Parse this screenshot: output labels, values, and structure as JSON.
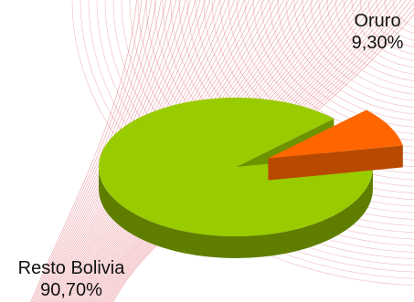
{
  "chart_data": {
    "type": "pie",
    "title": "",
    "slices": [
      {
        "label": "Oruro",
        "value_label": "9,30%",
        "value": 9.3,
        "color": "#ff6600",
        "exploded": true
      },
      {
        "label": "Resto Bolivia",
        "value_label": "90,70%",
        "value": 90.7,
        "color": "#99cc00",
        "exploded": false
      }
    ],
    "three_d": true,
    "legend": "none",
    "background_pattern_color": "#e6808a"
  }
}
